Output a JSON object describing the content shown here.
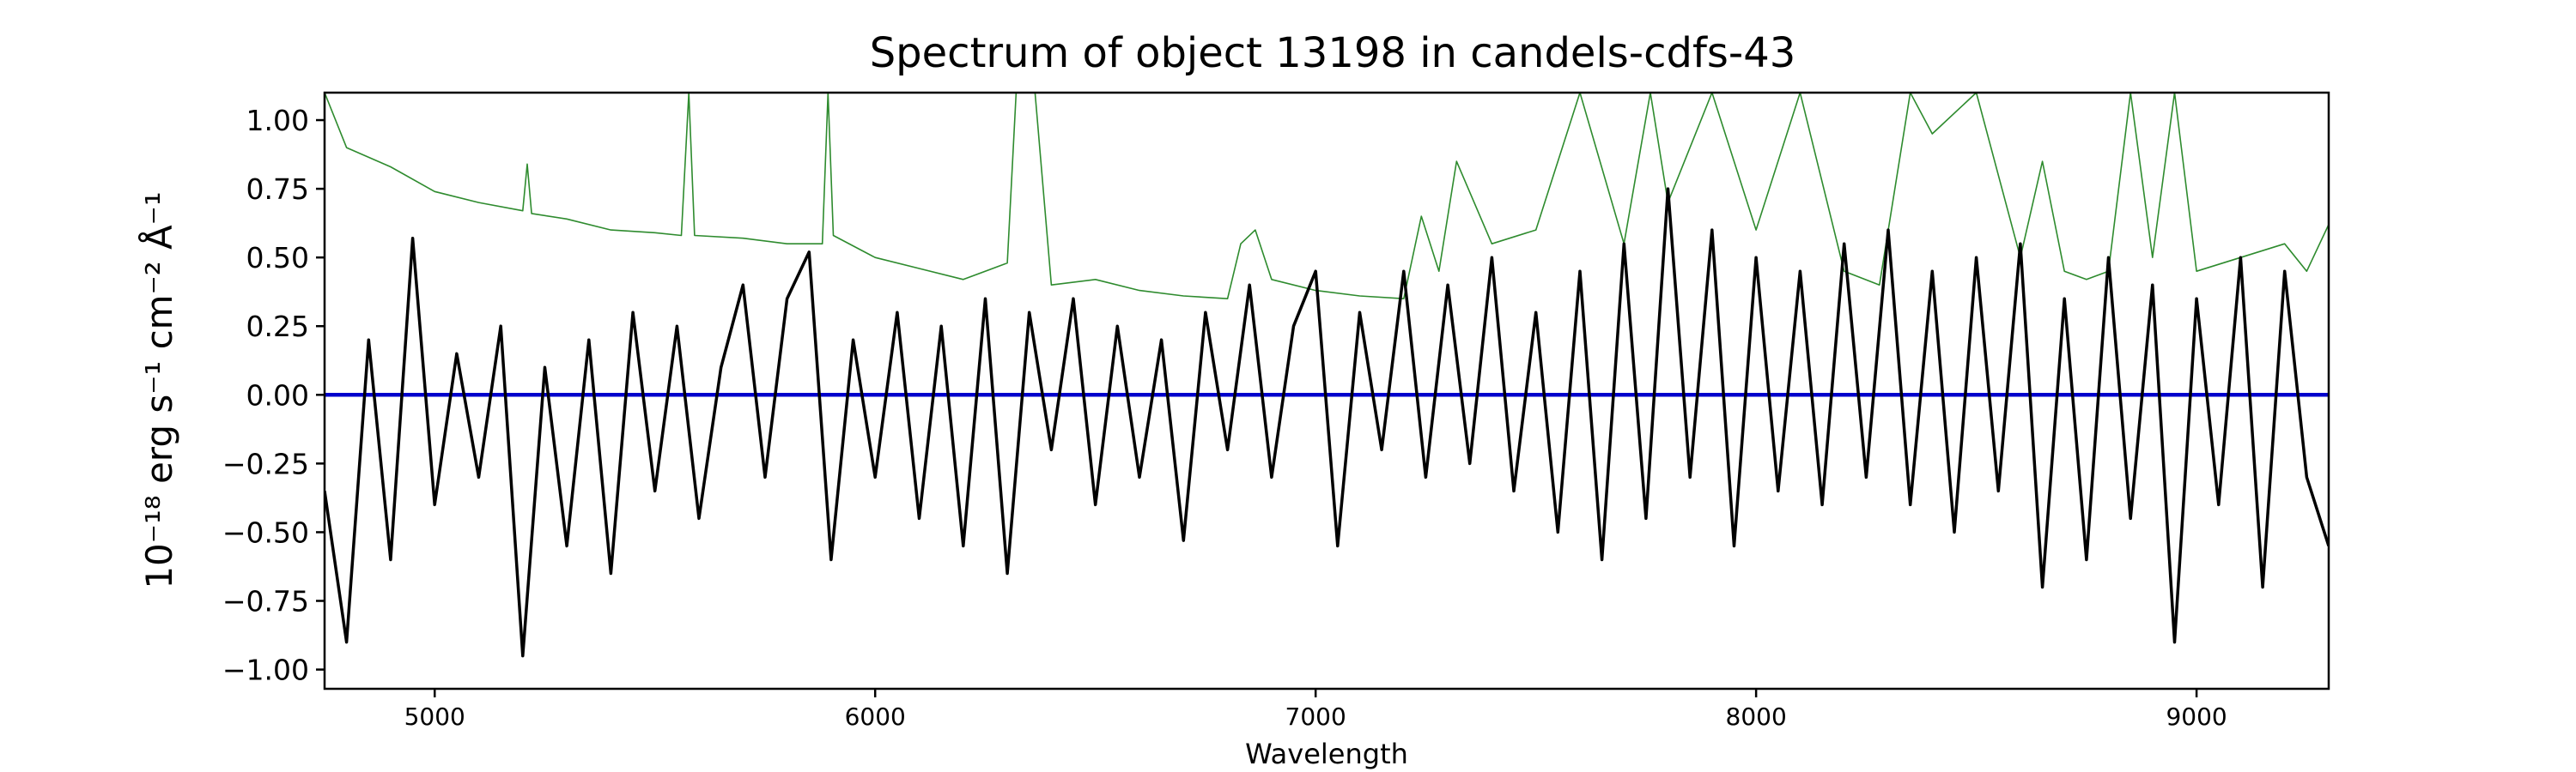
{
  "chart_data": {
    "type": "line",
    "title": "Spectrum of object 13198 in candels-cdfs-43",
    "xlabel": "Wavelength",
    "ylabel": "10⁻¹⁸ erg s⁻¹ cm⁻² Å⁻¹",
    "xlim": [
      4750,
      9300
    ],
    "ylim": [
      -1.07,
      1.1
    ],
    "grid": false,
    "legend": "none",
    "x_ticks": [
      5000,
      6000,
      7000,
      8000,
      9000
    ],
    "x_tick_labels": [
      "5000",
      "6000",
      "7000",
      "8000",
      "9000"
    ],
    "y_ticks": [
      1.0,
      0.75,
      0.5,
      0.25,
      0.0,
      -0.25,
      -0.5,
      -0.75,
      -1.0
    ],
    "y_tick_labels": [
      "1.00",
      "0.75",
      "0.50",
      "0.25",
      "0.00",
      "−0.25",
      "−0.50",
      "−0.75",
      "−1.00"
    ],
    "colors": {
      "flux": "#000000",
      "sky": "#2e8b2e",
      "zero": "#0000cc"
    },
    "series": [
      {
        "role": "flux",
        "x": [
          4750,
          4800,
          4850,
          4900,
          4950,
          5000,
          5050,
          5100,
          5150,
          5200,
          5250,
          5300,
          5350,
          5400,
          5450,
          5500,
          5550,
          5600,
          5650,
          5700,
          5750,
          5800,
          5850,
          5900,
          5950,
          6000,
          6050,
          6100,
          6150,
          6200,
          6250,
          6300,
          6350,
          6400,
          6450,
          6500,
          6550,
          6600,
          6650,
          6700,
          6750,
          6800,
          6850,
          6900,
          6950,
          7000,
          7050,
          7100,
          7150,
          7200,
          7250,
          7300,
          7350,
          7400,
          7450,
          7500,
          7550,
          7600,
          7650,
          7700,
          7750,
          7800,
          7850,
          7900,
          7950,
          8000,
          8050,
          8100,
          8150,
          8200,
          8250,
          8300,
          8350,
          8400,
          8450,
          8500,
          8550,
          8600,
          8650,
          8700,
          8750,
          8800,
          8850,
          8900,
          8950,
          9000,
          9050,
          9100,
          9150,
          9200,
          9250,
          9300
        ],
        "values": [
          -0.35,
          -0.9,
          0.2,
          -0.6,
          0.57,
          -0.4,
          0.15,
          -0.3,
          0.25,
          -0.95,
          0.1,
          -0.55,
          0.2,
          -0.65,
          0.3,
          -0.35,
          0.25,
          -0.45,
          0.1,
          0.4,
          -0.3,
          0.35,
          0.52,
          -0.6,
          0.2,
          -0.3,
          0.3,
          -0.45,
          0.25,
          -0.55,
          0.35,
          -0.65,
          0.3,
          -0.2,
          0.35,
          -0.4,
          0.25,
          -0.3,
          0.2,
          -0.53,
          0.3,
          -0.2,
          0.4,
          -0.3,
          0.25,
          0.45,
          -0.55,
          0.3,
          -0.2,
          0.45,
          -0.3,
          0.4,
          -0.25,
          0.5,
          -0.35,
          0.3,
          -0.5,
          0.45,
          -0.6,
          0.55,
          -0.45,
          0.75,
          -0.3,
          0.6,
          -0.55,
          0.5,
          -0.35,
          0.45,
          -0.4,
          0.55,
          -0.3,
          0.6,
          -0.4,
          0.45,
          -0.5,
          0.5,
          -0.35,
          0.55,
          -0.7,
          0.35,
          -0.6,
          0.5,
          -0.45,
          0.4,
          -0.9,
          0.35,
          -0.4,
          0.5,
          -0.7,
          0.45,
          -0.3,
          -0.55
        ]
      },
      {
        "role": "sky",
        "x": [
          4750,
          4800,
          4900,
          5000,
          5100,
          5200,
          5210,
          5220,
          5300,
          5400,
          5500,
          5560,
          5577,
          5590,
          5700,
          5800,
          5880,
          5893,
          5905,
          6000,
          6100,
          6200,
          6300,
          6320,
          6363,
          6400,
          6500,
          6600,
          6700,
          6800,
          6830,
          6863,
          6900,
          7000,
          7100,
          7200,
          7240,
          7280,
          7320,
          7400,
          7500,
          7600,
          7700,
          7760,
          7800,
          7900,
          8000,
          8100,
          8200,
          8280,
          8350,
          8400,
          8500,
          8600,
          8650,
          8700,
          8750,
          8800,
          8850,
          8900,
          8950,
          9000,
          9100,
          9200,
          9250,
          9300
        ],
        "values": [
          1.1,
          0.9,
          0.83,
          0.74,
          0.7,
          0.67,
          0.84,
          0.66,
          0.64,
          0.6,
          0.59,
          0.58,
          1.1,
          0.58,
          0.57,
          0.55,
          0.55,
          1.1,
          0.58,
          0.5,
          0.46,
          0.42,
          0.48,
          1.1,
          1.1,
          0.4,
          0.42,
          0.38,
          0.36,
          0.35,
          0.55,
          0.6,
          0.42,
          0.38,
          0.36,
          0.35,
          0.65,
          0.45,
          0.85,
          0.55,
          0.6,
          1.1,
          0.55,
          1.1,
          0.7,
          1.1,
          0.6,
          1.1,
          0.45,
          0.4,
          1.1,
          0.95,
          1.1,
          0.5,
          0.85,
          0.45,
          0.42,
          0.45,
          1.1,
          0.5,
          1.1,
          0.45,
          0.5,
          0.55,
          0.45,
          0.62
        ]
      },
      {
        "role": "zero",
        "x": [
          4750,
          9300
        ],
        "values": [
          0.0,
          0.0
        ]
      }
    ]
  }
}
